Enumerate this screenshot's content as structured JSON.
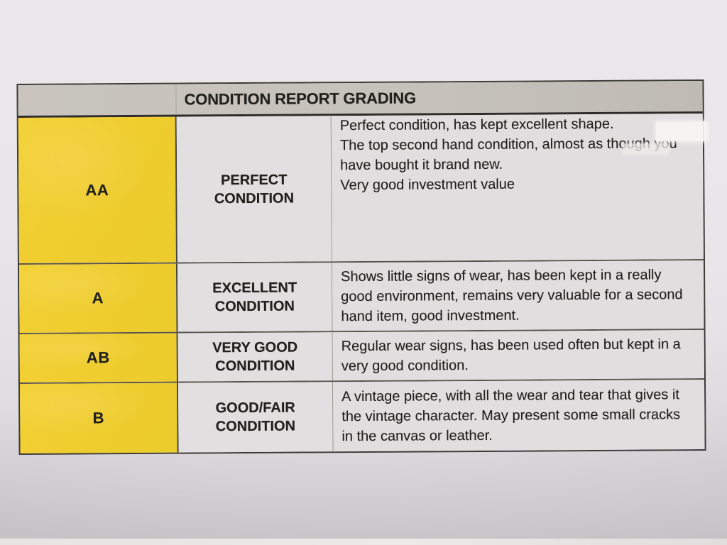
{
  "document": {
    "title": "CONDITION REPORT GRADING",
    "rows": [
      {
        "grade": "AA",
        "name_lines": [
          "PERFECT",
          "CONDITION"
        ],
        "paragraphs": [
          "Perfect condition, has kept excellent shape.",
          "The top second hand condition, almost as though you have bought it brand new.",
          "Very good investment value"
        ]
      },
      {
        "grade": "A",
        "name_lines": [
          "EXCELLENT",
          "CONDITION"
        ],
        "paragraphs": [
          "Shows little signs of wear, has been kept in a really good environment, remains very valuable for a second hand item, good investment."
        ]
      },
      {
        "grade": "AB",
        "name_lines": [
          "VERY GOOD",
          "CONDITION"
        ],
        "paragraphs": [
          "Regular wear signs, has been used often but kept in a very good condition."
        ]
      },
      {
        "grade": "B",
        "name_lines": [
          "GOOD/FAIR",
          "CONDITION"
        ],
        "paragraphs": [
          "A vintage piece, with all the wear and tear that gives it the vintage character. May present some small cracks in the canvas or leather."
        ]
      }
    ],
    "colors": {
      "grade_cell_yellow": "#efcd2f",
      "header_gray": "#c6c2bb",
      "cell_background": "#e0dedf",
      "text": "#21201d",
      "paper": "#e8e6e9"
    }
  }
}
